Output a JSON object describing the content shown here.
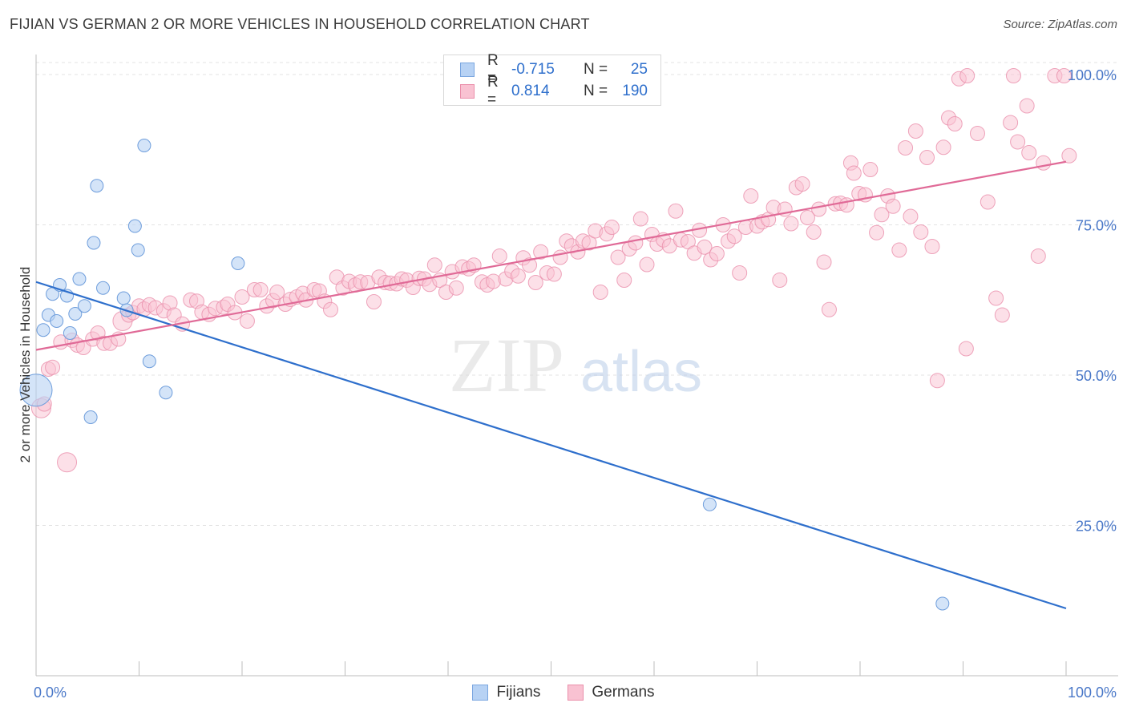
{
  "title": "FIJIAN VS GERMAN 2 OR MORE VEHICLES IN HOUSEHOLD CORRELATION CHART",
  "source": "Source: ZipAtlas.com",
  "watermark": {
    "zip": "ZIP",
    "atlas": "atlas"
  },
  "legend": {
    "r_label": "R =",
    "n_label": "N =",
    "rows": [
      {
        "name": "Fijians",
        "r": "-0.715",
        "n": "25",
        "fill": "#b7d2f4",
        "stroke": "#7aa6e0"
      },
      {
        "name": "Germans",
        "r": "0.814",
        "n": "190",
        "fill": "#f9c2d2",
        "stroke": "#ea8fab"
      }
    ]
  },
  "bottom_legend": [
    "Fijians",
    "Germans"
  ],
  "chart_data": {
    "type": "scatter",
    "title": "FIJIAN VS GERMAN 2 OR MORE VEHICLES IN HOUSEHOLD CORRELATION CHART",
    "xlabel": "",
    "ylabel": "2 or more Vehicles in Household",
    "xlim": [
      0,
      100
    ],
    "ylim": [
      0,
      102
    ],
    "x_tick_labels": [
      "0.0%",
      "100.0%"
    ],
    "y_tick_labels": [
      "25.0%",
      "50.0%",
      "75.0%",
      "100.0%"
    ],
    "y_ticks": [
      25,
      50,
      75,
      100
    ],
    "grid": true,
    "colors": {
      "fijian": "#2e6fcc",
      "german": "#e06a97",
      "axis_text": "#4a78c8"
    },
    "series": [
      {
        "name": "Fijians",
        "trend": {
          "x": [
            0,
            100
          ],
          "y": [
            65.5,
            11.2
          ]
        },
        "points": [
          [
            0,
            47.5,
            3
          ],
          [
            0.7,
            57.5,
            1
          ],
          [
            1.2,
            60,
            1
          ],
          [
            1.6,
            63.5,
            1
          ],
          [
            2,
            59,
            1
          ],
          [
            2.3,
            65,
            1
          ],
          [
            3,
            63.2,
            1
          ],
          [
            3.3,
            57,
            1
          ],
          [
            3.8,
            60.2,
            1
          ],
          [
            4.2,
            66,
            1
          ],
          [
            4.7,
            61.5,
            1
          ],
          [
            5.3,
            43,
            1
          ],
          [
            5.6,
            72,
            1
          ],
          [
            5.9,
            81.5,
            1
          ],
          [
            6.5,
            64.5,
            1
          ],
          [
            8.5,
            62.8,
            1
          ],
          [
            8.8,
            60.8,
            1
          ],
          [
            9.6,
            74.8,
            1
          ],
          [
            9.9,
            70.8,
            1
          ],
          [
            10.5,
            88.2,
            1
          ],
          [
            11,
            52.3,
            1
          ],
          [
            12.6,
            47.1,
            1
          ],
          [
            19.6,
            68.6,
            1
          ],
          [
            65.4,
            28.5,
            1
          ],
          [
            88,
            12,
            1
          ]
        ]
      },
      {
        "name": "Germans",
        "trend": {
          "x": [
            0,
            100
          ],
          "y": [
            54.2,
            85.5
          ]
        },
        "points": [
          [
            0.5,
            44.5,
            2
          ],
          [
            0.8,
            45.2,
            1
          ],
          [
            1.2,
            51,
            1
          ],
          [
            1.6,
            51.3,
            1
          ],
          [
            2.4,
            55.5,
            1
          ],
          [
            3,
            35.5,
            2
          ],
          [
            3.5,
            55.8,
            1
          ],
          [
            4,
            55,
            1
          ],
          [
            4.6,
            54.6,
            1
          ],
          [
            5.5,
            56,
            1
          ],
          [
            6,
            57,
            1
          ],
          [
            6.6,
            55.3,
            1
          ],
          [
            7.2,
            55.3,
            1
          ],
          [
            8,
            56,
            1
          ],
          [
            8.4,
            59,
            2
          ],
          [
            9,
            60,
            1
          ],
          [
            9.4,
            60.4,
            1
          ],
          [
            10,
            61.5,
            1
          ],
          [
            10.5,
            61,
            1
          ],
          [
            11,
            61.7,
            1
          ],
          [
            11.6,
            61.2,
            1
          ],
          [
            12.4,
            60.7,
            1
          ],
          [
            13,
            62,
            1
          ],
          [
            13.4,
            60,
            1
          ],
          [
            14.2,
            58.5,
            1
          ],
          [
            15,
            62.5,
            1
          ],
          [
            15.6,
            62.3,
            1
          ],
          [
            16.1,
            60.5,
            1
          ],
          [
            16.8,
            60.1,
            1
          ],
          [
            17.4,
            61.1,
            1
          ],
          [
            18.2,
            61.3,
            1
          ],
          [
            18.6,
            61.8,
            1
          ],
          [
            19.3,
            60.4,
            1
          ],
          [
            20,
            63,
            1
          ],
          [
            20.5,
            59,
            1
          ],
          [
            21.2,
            64.2,
            1
          ],
          [
            21.8,
            64.2,
            1
          ],
          [
            22.4,
            61.5,
            1
          ],
          [
            23,
            62.4,
            1
          ],
          [
            23.4,
            63.8,
            1
          ],
          [
            24.2,
            61.8,
            1
          ],
          [
            24.7,
            62.6,
            1
          ],
          [
            25.3,
            63,
            1
          ],
          [
            25.9,
            63.6,
            1
          ],
          [
            26.2,
            62.5,
            1
          ],
          [
            27,
            64.2,
            1
          ],
          [
            27.5,
            64,
            1
          ],
          [
            28,
            62.3,
            1
          ],
          [
            28.6,
            60.9,
            1
          ],
          [
            29.2,
            66.3,
            1
          ],
          [
            29.8,
            64.5,
            1
          ],
          [
            30.4,
            65.6,
            1
          ],
          [
            31,
            65,
            1
          ],
          [
            31.5,
            65.5,
            1
          ],
          [
            32.2,
            65.4,
            1
          ],
          [
            32.8,
            62.2,
            1
          ],
          [
            33.3,
            66.3,
            1
          ],
          [
            33.9,
            65.4,
            1
          ],
          [
            34.4,
            65.3,
            1
          ],
          [
            35,
            65.2,
            1
          ],
          [
            35.5,
            66,
            1
          ],
          [
            36,
            65.8,
            1
          ],
          [
            36.6,
            64.6,
            1
          ],
          [
            37.2,
            66.1,
            1
          ],
          [
            37.7,
            66,
            1
          ],
          [
            38.2,
            65.1,
            1
          ],
          [
            38.7,
            68.3,
            1
          ],
          [
            39.2,
            65.8,
            1
          ],
          [
            39.8,
            63.8,
            1
          ],
          [
            40.4,
            67.2,
            1
          ],
          [
            40.8,
            64.5,
            1
          ],
          [
            41.4,
            68,
            1
          ],
          [
            42,
            67.7,
            1
          ],
          [
            42.5,
            68.3,
            1
          ],
          [
            43.3,
            65.5,
            1
          ],
          [
            43.8,
            65,
            1
          ],
          [
            44.4,
            65.6,
            1
          ],
          [
            45,
            69.8,
            1
          ],
          [
            45.6,
            66,
            1
          ],
          [
            46.2,
            67.3,
            1
          ],
          [
            46.8,
            66.5,
            1
          ],
          [
            47.3,
            69.5,
            1
          ],
          [
            47.9,
            68.3,
            1
          ],
          [
            48.5,
            65.4,
            1
          ],
          [
            49,
            70.5,
            1
          ],
          [
            49.6,
            67,
            1
          ],
          [
            50.3,
            66.8,
            1
          ],
          [
            50.9,
            69.6,
            1
          ],
          [
            51.5,
            72.3,
            1
          ],
          [
            52,
            71.5,
            1
          ],
          [
            52.6,
            70.5,
            1
          ],
          [
            53.1,
            72.3,
            1
          ],
          [
            53.7,
            72,
            1
          ],
          [
            54.3,
            74,
            1
          ],
          [
            54.8,
            63.8,
            1
          ],
          [
            55.4,
            73.5,
            1
          ],
          [
            55.9,
            74.6,
            1
          ],
          [
            56.5,
            69.6,
            1
          ],
          [
            57.1,
            65.8,
            1
          ],
          [
            57.6,
            71,
            1
          ],
          [
            58.2,
            72,
            1
          ],
          [
            58.7,
            76,
            1
          ],
          [
            59.3,
            68.4,
            1
          ],
          [
            59.8,
            73.4,
            1
          ],
          [
            60.3,
            71.8,
            1
          ],
          [
            60.9,
            72.5,
            1
          ],
          [
            61.5,
            71.5,
            1
          ],
          [
            62.1,
            77.3,
            1
          ],
          [
            62.6,
            72.5,
            1
          ],
          [
            63.3,
            72.2,
            1
          ],
          [
            63.9,
            70.3,
            1
          ],
          [
            64.4,
            74.1,
            1
          ],
          [
            64.9,
            71.3,
            1
          ],
          [
            65.5,
            69.2,
            1
          ],
          [
            66.1,
            70.2,
            1
          ],
          [
            66.7,
            75,
            1
          ],
          [
            67.2,
            72.3,
            1
          ],
          [
            67.8,
            73.1,
            1
          ],
          [
            68.3,
            67,
            1
          ],
          [
            68.9,
            74.6,
            1
          ],
          [
            69.4,
            79.8,
            1
          ],
          [
            70,
            74.8,
            1
          ],
          [
            70.5,
            75.5,
            1
          ],
          [
            71.1,
            75.9,
            1
          ],
          [
            71.6,
            77.9,
            1
          ],
          [
            72.2,
            65.8,
            1
          ],
          [
            72.7,
            77.6,
            1
          ],
          [
            73.3,
            75.2,
            1
          ],
          [
            73.8,
            81.2,
            1
          ],
          [
            74.4,
            81.8,
            1
          ],
          [
            74.9,
            76.2,
            1
          ],
          [
            75.5,
            73.8,
            1
          ],
          [
            76,
            77.6,
            1
          ],
          [
            76.5,
            68.8,
            1
          ],
          [
            77,
            60.9,
            1
          ],
          [
            77.6,
            78.5,
            1
          ],
          [
            78.1,
            78.6,
            1
          ],
          [
            78.7,
            78.3,
            1
          ],
          [
            79.1,
            85.3,
            1
          ],
          [
            79.4,
            83.6,
            1
          ],
          [
            79.9,
            80.2,
            1
          ],
          [
            80.5,
            80,
            1
          ],
          [
            81,
            84.2,
            1
          ],
          [
            81.6,
            73.7,
            1
          ],
          [
            82.1,
            76.7,
            1
          ],
          [
            82.7,
            79.8,
            1
          ],
          [
            83.2,
            78.1,
            1
          ],
          [
            83.8,
            70.8,
            1
          ],
          [
            84.4,
            87.8,
            1
          ],
          [
            84.9,
            76.4,
            1
          ],
          [
            85.4,
            90.6,
            1
          ],
          [
            85.9,
            73.8,
            1
          ],
          [
            86.5,
            86.2,
            1
          ],
          [
            87,
            71.4,
            1
          ],
          [
            87.5,
            49.1,
            1
          ],
          [
            88.1,
            87.9,
            1
          ],
          [
            88.6,
            92.8,
            1
          ],
          [
            89.2,
            91.8,
            1
          ],
          [
            89.6,
            99.3,
            1
          ],
          [
            90.3,
            54.4,
            1
          ],
          [
            90.4,
            99.8,
            1
          ],
          [
            91.4,
            90.2,
            1
          ],
          [
            92.4,
            78.8,
            1
          ],
          [
            93.2,
            62.8,
            1
          ],
          [
            93.8,
            60,
            1
          ],
          [
            94.6,
            92,
            1
          ],
          [
            94.9,
            99.8,
            1
          ],
          [
            95.3,
            88.8,
            1
          ],
          [
            96.2,
            94.8,
            1
          ],
          [
            96.4,
            87,
            1
          ],
          [
            97.3,
            69.8,
            1
          ],
          [
            97.8,
            85.3,
            1
          ],
          [
            98.9,
            99.8,
            1
          ],
          [
            99.8,
            99.8,
            1
          ],
          [
            100.3,
            86.5,
            1
          ]
        ]
      }
    ]
  }
}
